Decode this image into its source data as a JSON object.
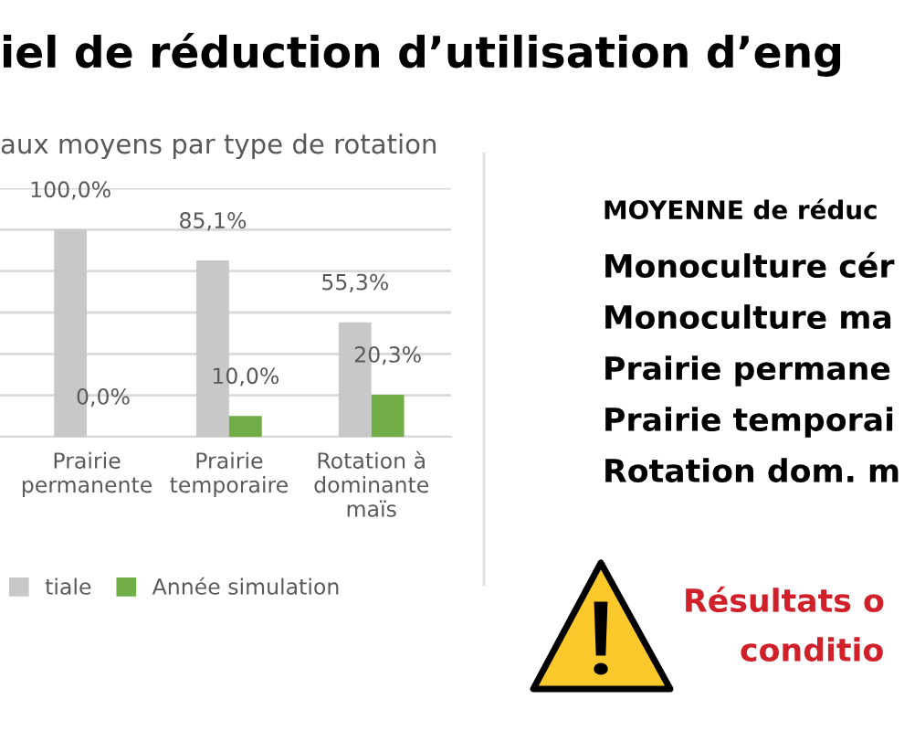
{
  "chart_data": {
    "type": "bar",
    "title": "aux moyens par type de rotation",
    "categories": [
      "Prairie\npermanente",
      "Prairie\ntemporaire",
      "Rotation à\ndominante\nmaïs"
    ],
    "series": [
      {
        "name": "tiale",
        "color": "#c8c8c8",
        "values": [
          100.0,
          85.1,
          55.3
        ],
        "value_labels": [
          "100,0%",
          "85,1%",
          "55,3%"
        ]
      },
      {
        "name": "Année simulation",
        "color": "#70ad47",
        "values": [
          0.0,
          10.0,
          20.3
        ],
        "value_labels": [
          "0,0%",
          "10,0%",
          "20,3%"
        ]
      }
    ],
    "ylim": [
      0,
      120
    ],
    "yticks": [
      {
        "value": 0,
        "label": null
      },
      {
        "value": 20,
        "label": null
      },
      {
        "value": 40,
        "label": null
      },
      {
        "value": 60,
        "label": null
      },
      {
        "value": 80,
        "label": null
      },
      {
        "value": 100,
        "label": null
      },
      {
        "value": 120,
        "label": null
      }
    ],
    "tick_labels": "x",
    "grid": "y",
    "legend": "bottom",
    "annotations": [
      "iel de réduction d’utilisation d’eng",
      "MOYENNE de réduc",
      "Monoculture cér",
      "Monoculture ma",
      "Prairie permane",
      "Prairie temporai",
      "Rotation dom. m",
      "Résultats o",
      "conditio"
    ]
  }
}
